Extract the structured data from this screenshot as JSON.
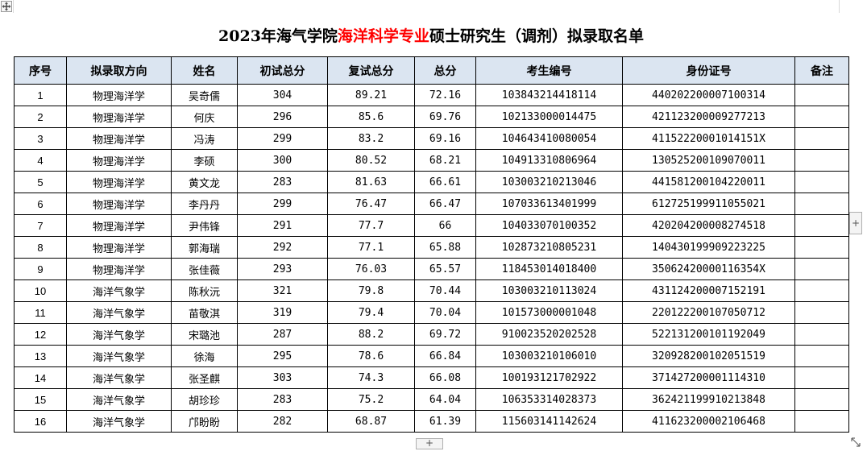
{
  "title": {
    "prefix": "2023年海气学院",
    "highlight": "海洋科学专业",
    "suffix": "硕士研究生（调剂）拟录取名单",
    "highlight_color": "#ff0000"
  },
  "header_background": "#dbe5f1",
  "columns": {
    "seq": "序号",
    "direction": "拟录取方向",
    "name": "姓名",
    "initial_score": "初试总分",
    "retest_score": "复试总分",
    "total_score": "总分",
    "exam_id": "考生编号",
    "id_number": "身份证号",
    "remark": "备注"
  },
  "rows": [
    {
      "seq": "1",
      "direction": "物理海洋学",
      "name": "吴奇儒",
      "initial_score": "304",
      "retest_score": "89.21",
      "total_score": "72.16",
      "exam_id": "103843214418114",
      "id_number": "440202200007100314",
      "remark": ""
    },
    {
      "seq": "2",
      "direction": "物理海洋学",
      "name": "何庆",
      "initial_score": "296",
      "retest_score": "85.6",
      "total_score": "69.76",
      "exam_id": "102133000014475",
      "id_number": "421123200009277213",
      "remark": ""
    },
    {
      "seq": "3",
      "direction": "物理海洋学",
      "name": "冯涛",
      "initial_score": "299",
      "retest_score": "83.2",
      "total_score": "69.16",
      "exam_id": "104643410080054",
      "id_number": "41152220001014151X",
      "remark": ""
    },
    {
      "seq": "4",
      "direction": "物理海洋学",
      "name": "李硕",
      "initial_score": "300",
      "retest_score": "80.52",
      "total_score": "68.21",
      "exam_id": "104913310806964",
      "id_number": "130525200109070011",
      "remark": ""
    },
    {
      "seq": "5",
      "direction": "物理海洋学",
      "name": "黄文龙",
      "initial_score": "283",
      "retest_score": "81.63",
      "total_score": "66.61",
      "exam_id": "103003210213046",
      "id_number": "441581200104220011",
      "remark": ""
    },
    {
      "seq": "6",
      "direction": "物理海洋学",
      "name": "李丹丹",
      "initial_score": "299",
      "retest_score": "76.47",
      "total_score": "66.47",
      "exam_id": "107033613401999",
      "id_number": "612725199911055021",
      "remark": ""
    },
    {
      "seq": "7",
      "direction": "物理海洋学",
      "name": "尹伟锋",
      "initial_score": "291",
      "retest_score": "77.7",
      "total_score": "66",
      "exam_id": "104033070100352",
      "id_number": "420204200008274518",
      "remark": ""
    },
    {
      "seq": "8",
      "direction": "物理海洋学",
      "name": "郭海瑞",
      "initial_score": "292",
      "retest_score": "77.1",
      "total_score": "65.88",
      "exam_id": "102873210805231",
      "id_number": "140430199909223225",
      "remark": ""
    },
    {
      "seq": "9",
      "direction": "物理海洋学",
      "name": "张佳薇",
      "initial_score": "293",
      "retest_score": "76.03",
      "total_score": "65.57",
      "exam_id": "118453014018400",
      "id_number": "35062420000116354X",
      "remark": ""
    },
    {
      "seq": "10",
      "direction": "海洋气象学",
      "name": "陈秋沅",
      "initial_score": "321",
      "retest_score": "79.8",
      "total_score": "70.44",
      "exam_id": "103003210113024",
      "id_number": "431124200007152191",
      "remark": ""
    },
    {
      "seq": "11",
      "direction": "海洋气象学",
      "name": "苗敬淇",
      "initial_score": "319",
      "retest_score": "79.4",
      "total_score": "70.04",
      "exam_id": "101573000001048",
      "id_number": "220122200107050712",
      "remark": ""
    },
    {
      "seq": "12",
      "direction": "海洋气象学",
      "name": "宋璐池",
      "initial_score": "287",
      "retest_score": "88.2",
      "total_score": "69.72",
      "exam_id": "910023520202528",
      "id_number": "522131200101192049",
      "remark": ""
    },
    {
      "seq": "13",
      "direction": "海洋气象学",
      "name": "徐海",
      "initial_score": "295",
      "retest_score": "78.6",
      "total_score": "66.84",
      "exam_id": "103003210106010",
      "id_number": "320928200102051519",
      "remark": ""
    },
    {
      "seq": "14",
      "direction": "海洋气象学",
      "name": "张圣麒",
      "initial_score": "303",
      "retest_score": "74.3",
      "total_score": "66.08",
      "exam_id": "100193121702922",
      "id_number": "371427200001114310",
      "remark": ""
    },
    {
      "seq": "15",
      "direction": "海洋气象学",
      "name": "胡珍珍",
      "initial_score": "283",
      "retest_score": "75.2",
      "total_score": "64.04",
      "exam_id": "106353314028373",
      "id_number": "362421199910213848",
      "remark": ""
    },
    {
      "seq": "16",
      "direction": "海洋气象学",
      "name": "邝盼盼",
      "initial_score": "282",
      "retest_score": "68.87",
      "total_score": "61.39",
      "exam_id": "115603141142624",
      "id_number": "411623200002106468",
      "remark": ""
    }
  ],
  "controls": {
    "add_row_label": "+",
    "add_column_label": "+",
    "move_icon": "move-icon",
    "resize_icon": "resize-icon"
  }
}
